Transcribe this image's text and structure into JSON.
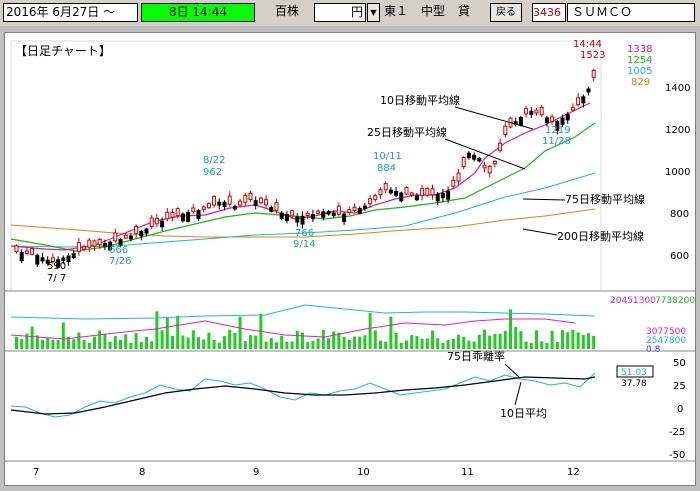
{
  "toolbar": {
    "date_range": "2016年  6月27日 ～",
    "time": "8日  14:44",
    "unit": "百株",
    "currency": "円",
    "market": "東１",
    "category": "中型",
    "margin": "貸",
    "back_label": "戻る",
    "code": "3436",
    "name": "ＳＵＭＣＯ"
  },
  "chart": {
    "title": "【日足チャート】",
    "time_label": "14:44",
    "last_price": "1523",
    "ma_values": [
      "1338",
      "1254",
      "1005",
      "829"
    ],
    "ma_colors": [
      "#e0207f",
      "#18b818",
      "#20b8c8",
      "#e08020"
    ],
    "price_ticks": [
      "1400",
      "1200",
      "1000",
      "800",
      "600"
    ],
    "annotations": [
      {
        "text": "8/22",
        "color": "#1aa0b8"
      },
      {
        "text": "962",
        "color": "#1aa0b8"
      },
      {
        "text": "10/11",
        "color": "#1aa0b8"
      },
      {
        "text": "884",
        "color": "#1aa0b8"
      },
      {
        "text": "666",
        "color": "#1aa0b8"
      },
      {
        "text": "7/26",
        "color": "#1aa0b8"
      },
      {
        "text": "590",
        "color": "#000000"
      },
      {
        "text": "7/ 7",
        "color": "#000000"
      },
      {
        "text": "766",
        "color": "#1aa0b8"
      },
      {
        "text": "9/14",
        "color": "#1aa0b8"
      },
      {
        "text": "1219",
        "color": "#1aa0b8"
      },
      {
        "text": "11/28",
        "color": "#1aa0b8"
      }
    ],
    "ma_labels": [
      "10日移動平均線",
      "25日移動平均線",
      "75日移動平均線",
      "200日移動平均線"
    ],
    "volume_labels": {
      "v1": "20451300",
      "v2": "7738200",
      "v3": "3077500",
      "v4": "2547800",
      "v5": "0.8"
    },
    "osc_labels": {
      "kairi": "75日乖離率",
      "avg": "10日平均",
      "val1": "51.03",
      "val2": "37.78"
    },
    "osc_ticks": [
      "50",
      "25",
      "0",
      "-25",
      "-50"
    ],
    "month_ticks": [
      "7",
      "8",
      "9",
      "10",
      "11",
      "12"
    ]
  }
}
